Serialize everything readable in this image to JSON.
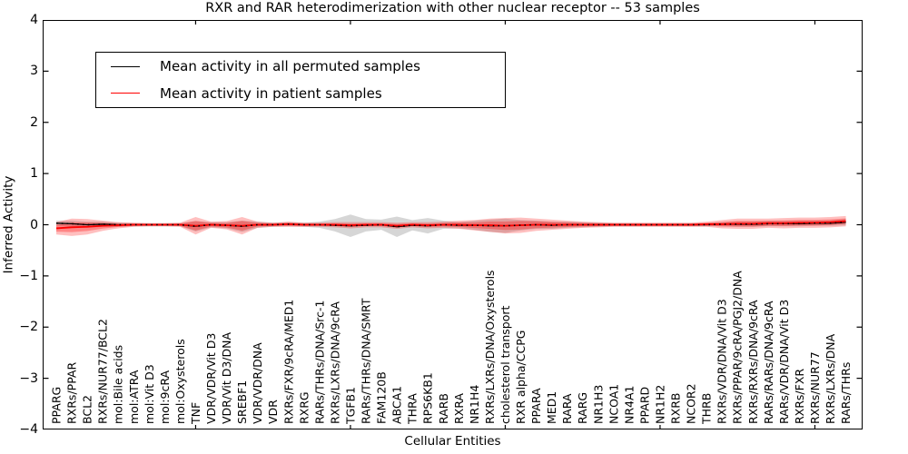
{
  "title": "RXR and RAR heterodimerization with other nuclear receptor -- 53 samples",
  "axes": {
    "x_label": "Cellular Entities",
    "y_label": "Inferred Activity",
    "y_tick_labels": [
      "4",
      "3",
      "2",
      "1",
      "0",
      "−1",
      "−2",
      "−3",
      "−4"
    ],
    "y_min": -4,
    "y_max": 4
  },
  "legend": {
    "entries": [
      {
        "label": "Mean activity in all permuted samples",
        "color": "#000000"
      },
      {
        "label": "Mean activity in patient samples",
        "color": "#ff0000"
      }
    ]
  },
  "colors": {
    "frame": "#000000",
    "permuted_line": "#000000",
    "patient_line": "#ff0000",
    "permuted_band": "rgba(0,0,0,0.16)",
    "patient_band_outer": "rgba(255,0,0,0.25)",
    "patient_band_inner": "rgba(255,0,0,0.30)"
  },
  "chart_data": {
    "type": "line",
    "title": "RXR and RAR heterodimerization with other nuclear receptor -- 53 samples",
    "xlabel": "Cellular Entities",
    "ylabel": "Inferred Activity",
    "ylim": [
      -4,
      4
    ],
    "grid": false,
    "legend_position": "upper left",
    "categories": [
      "PPARG",
      "RXRs/PPAR",
      "BCL2",
      "RXRs/NUR77/BCL2",
      "mol:Bile acids",
      "mol:ATRA",
      "mol:Vit D3",
      "mol:9cRA",
      "mol:Oxysterols",
      "TNF",
      "VDR/VDR/Vit D3",
      "VDR/Vit D3/DNA",
      "SREBF1",
      "VDR/VDR/DNA",
      "VDR",
      "RXRs/FXR/9cRA/MED1",
      "RXRG",
      "RARs/THRs/DNA/Src-1",
      "RXRs/LXRs/DNA/9cRA",
      "TGFB1",
      "RARs/THRs/DNA/SMRT",
      "FAM120B",
      "ABCA1",
      "THRA",
      "RPS6KB1",
      "RARB",
      "RXRA",
      "NR1H4",
      "RXRs/LXRs/DNA/Oxysterols",
      "cholesterol transport",
      "RXR alpha/CCPG",
      "PPARA",
      "MED1",
      "RARA",
      "RARG",
      "NR1H3",
      "NCOA1",
      "NR4A1",
      "PPARD",
      "NR1H2",
      "RXRB",
      "NCOR2",
      "THRB",
      "RXRs/VDR/DNA/Vit D3",
      "RXRs/PPAR/9cRA/PGJ2/DNA",
      "RXRs/RXRs/DNA/9cRA",
      "RARs/RARs/DNA/9cRA",
      "RARs/VDR/DNA/Vit D3",
      "RXRs/FXR",
      "RXRs/NUR77",
      "RXRs/LXRs/DNA",
      "RARs/THRs"
    ],
    "x_major_tick_indices": [
      9,
      19,
      29,
      39,
      49
    ],
    "series": [
      {
        "name": "Mean activity in all permuted samples",
        "color": "#000000",
        "mean": [
          0.03,
          0.02,
          0.0,
          0.01,
          0.0,
          0.0,
          0.0,
          0.0,
          0.0,
          -0.03,
          0.0,
          -0.01,
          -0.03,
          0.0,
          0.0,
          0.01,
          0.0,
          0.0,
          -0.01,
          -0.02,
          -0.01,
          0.0,
          -0.04,
          -0.01,
          -0.02,
          0.0,
          -0.01,
          -0.01,
          -0.02,
          -0.02,
          -0.01,
          0.0,
          -0.01,
          0.0,
          0.0,
          0.0,
          0.0,
          0.0,
          0.0,
          0.0,
          0.0,
          0.0,
          0.0,
          0.01,
          0.01,
          0.01,
          0.02,
          0.02,
          0.02,
          0.03,
          0.03,
          0.05
        ],
        "std": [
          0.05,
          0.06,
          0.06,
          0.05,
          0.04,
          0.03,
          0.03,
          0.03,
          0.03,
          0.1,
          0.05,
          0.06,
          0.11,
          0.06,
          0.04,
          0.04,
          0.04,
          0.06,
          0.12,
          0.22,
          0.12,
          0.1,
          0.2,
          0.1,
          0.15,
          0.08,
          0.06,
          0.09,
          0.12,
          0.14,
          0.1,
          0.08,
          0.07,
          0.06,
          0.05,
          0.04,
          0.03,
          0.03,
          0.03,
          0.03,
          0.03,
          0.03,
          0.03,
          0.04,
          0.05,
          0.05,
          0.05,
          0.05,
          0.05,
          0.05,
          0.05,
          0.06
        ]
      },
      {
        "name": "Mean activity in patient samples",
        "color": "#ff0000",
        "mean": [
          -0.07,
          -0.05,
          -0.04,
          -0.02,
          -0.01,
          0.0,
          0.0,
          0.0,
          0.0,
          -0.02,
          0.0,
          -0.01,
          -0.02,
          0.0,
          0.0,
          0.01,
          0.0,
          0.0,
          0.0,
          -0.01,
          0.0,
          0.0,
          -0.02,
          0.0,
          -0.01,
          0.0,
          0.0,
          -0.01,
          -0.01,
          -0.02,
          -0.01,
          0.0,
          0.0,
          0.0,
          0.0,
          0.0,
          0.0,
          0.0,
          0.0,
          0.0,
          0.0,
          0.0,
          0.01,
          0.01,
          0.02,
          0.02,
          0.03,
          0.03,
          0.04,
          0.04,
          0.05,
          0.07
        ],
        "std": [
          0.12,
          0.17,
          0.15,
          0.1,
          0.06,
          0.04,
          0.03,
          0.03,
          0.04,
          0.17,
          0.06,
          0.08,
          0.17,
          0.06,
          0.04,
          0.05,
          0.04,
          0.04,
          0.05,
          0.06,
          0.05,
          0.05,
          0.06,
          0.05,
          0.06,
          0.06,
          0.08,
          0.1,
          0.13,
          0.15,
          0.15,
          0.12,
          0.1,
          0.08,
          0.06,
          0.05,
          0.04,
          0.04,
          0.04,
          0.04,
          0.04,
          0.04,
          0.05,
          0.08,
          0.1,
          0.1,
          0.09,
          0.1,
          0.1,
          0.1,
          0.1,
          0.1
        ]
      }
    ]
  }
}
